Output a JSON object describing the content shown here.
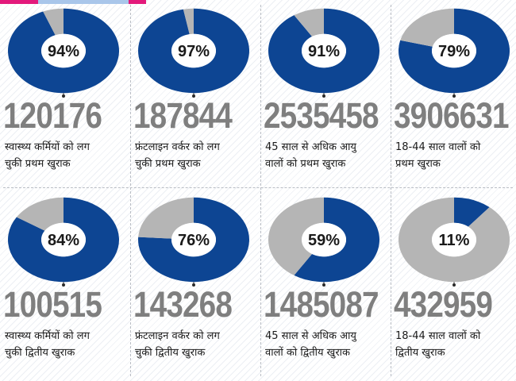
{
  "colors": {
    "primary": "#0d4593",
    "secondary": "#b5b5b5",
    "accent_pink": "#e3197b",
    "accent_blue": "#a9c6ea",
    "number": "#7f7f7f"
  },
  "chart_data": [
    {
      "type": "pie",
      "title": "",
      "slices": [
        {
          "name": "",
          "value": 94
        },
        {
          "name": "",
          "value": 6
        }
      ],
      "label": "94%",
      "total_text": "120176",
      "caption_lines": [
        "स्वास्थ्य कर्मियों को लग",
        "चुकी प्रथम खुराक"
      ]
    },
    {
      "type": "pie",
      "title": "",
      "slices": [
        {
          "name": "",
          "value": 97
        },
        {
          "name": "",
          "value": 3
        }
      ],
      "label": "97%",
      "total_text": "187844",
      "caption_lines": [
        "फ्रंटलाइन वर्कर को लग",
        "चुकी प्रथम खुराक"
      ]
    },
    {
      "type": "pie",
      "title": "",
      "slices": [
        {
          "name": "",
          "value": 91
        },
        {
          "name": "",
          "value": 9
        }
      ],
      "label": "91%",
      "total_text": "2535458",
      "caption_lines": [
        "45 साल से अधिक आयु",
        "वालों को प्रथम खुराक"
      ]
    },
    {
      "type": "pie",
      "title": "",
      "slices": [
        {
          "name": "",
          "value": 79
        },
        {
          "name": "",
          "value": 21
        }
      ],
      "label": "79%",
      "total_text": "3906631",
      "caption_lines": [
        "18-44 साल वालों को",
        "प्रथम खुराक"
      ]
    },
    {
      "type": "pie",
      "title": "",
      "slices": [
        {
          "name": "",
          "value": 84
        },
        {
          "name": "",
          "value": 16
        }
      ],
      "label": "84%",
      "total_text": "100515",
      "caption_lines": [
        "स्वास्थ्य कर्मियों को लग",
        "चुकी द्वितीय खुराक"
      ]
    },
    {
      "type": "pie",
      "title": "",
      "slices": [
        {
          "name": "",
          "value": 76
        },
        {
          "name": "",
          "value": 24
        }
      ],
      "label": "76%",
      "total_text": "143268",
      "caption_lines": [
        "फ्रंटलाइन वर्कर को लग",
        "चुकी द्वितीय खुराक"
      ]
    },
    {
      "type": "pie",
      "title": "",
      "slices": [
        {
          "name": "",
          "value": 59
        },
        {
          "name": "",
          "value": 41
        }
      ],
      "label": "59%",
      "total_text": "1485087",
      "caption_lines": [
        "45 साल से अधिक आयु",
        "वालों को द्वितीय खुराक"
      ]
    },
    {
      "type": "pie",
      "title": "",
      "slices": [
        {
          "name": "",
          "value": 11
        },
        {
          "name": "",
          "value": 89
        }
      ],
      "label": "11%",
      "total_text": "432959",
      "caption_lines": [
        "18-44 साल वालों को",
        "द्वितीय खुराक"
      ]
    }
  ]
}
